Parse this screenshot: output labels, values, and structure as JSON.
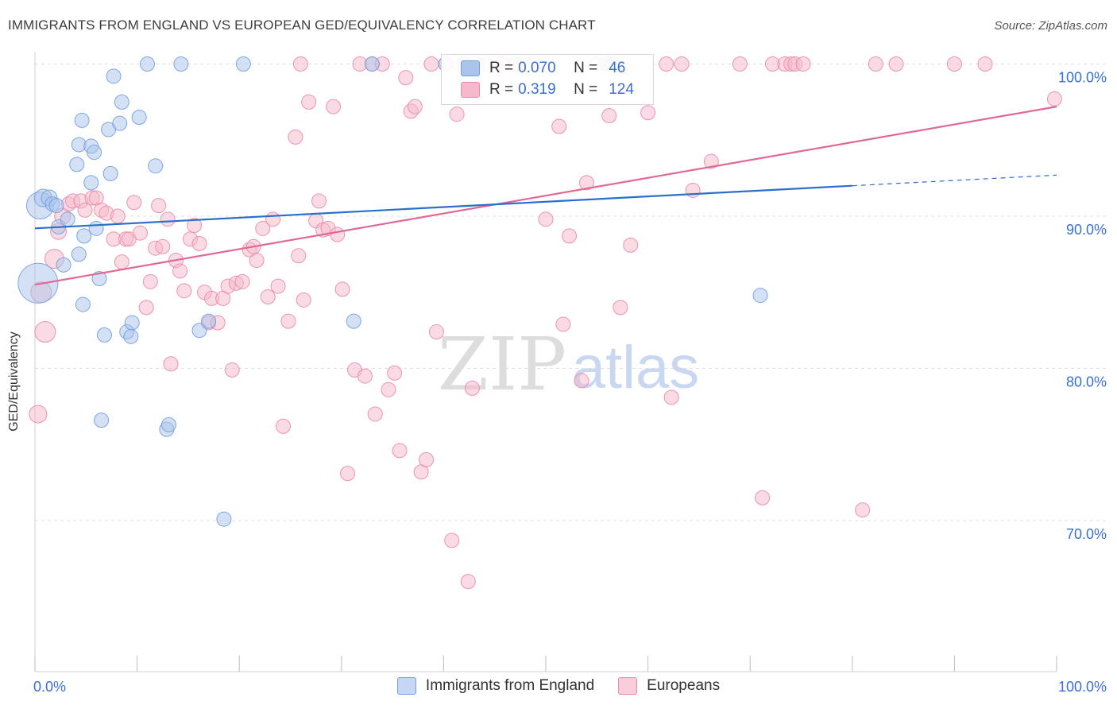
{
  "header": {
    "title": "IMMIGRANTS FROM ENGLAND VS EUROPEAN GED/EQUIVALENCY CORRELATION CHART",
    "source": "Source: ZipAtlas.com"
  },
  "watermark": {
    "zip": "ZIP",
    "atlas": "atlas"
  },
  "legend": {
    "rows": [
      {
        "r_label": "R =",
        "r_value": "0.070",
        "n_label": "N =",
        "n_value": "46"
      },
      {
        "r_label": "R =",
        "r_value": "0.319",
        "n_label": "N =",
        "n_value": "124"
      }
    ]
  },
  "colors": {
    "blue_fill": "#aac4ec",
    "blue_stroke": "#6f9fe0",
    "blue_line": "#2b6fcc",
    "pink_fill": "#f6b8ca",
    "pink_stroke": "#e98aa8",
    "pink_line": "#e06a95",
    "tick_label": "#3a6fd0",
    "grid": "#e1e1e1"
  },
  "chart_data": {
    "type": "scatter",
    "title": "IMMIGRANTS FROM ENGLAND VS EUROPEAN GED/EQUIVALENCY CORRELATION CHART",
    "xlabel": "",
    "ylabel": "GED/Equivalency",
    "xlim": [
      0,
      100
    ],
    "ylim": [
      60,
      103
    ],
    "x_tick_labels": [
      "0.0%",
      "100.0%"
    ],
    "y_ticks": [
      70,
      80,
      90,
      100
    ],
    "y_tick_labels": [
      "70.0%",
      "80.0%",
      "90.0%",
      "100.0%"
    ],
    "grid": true,
    "legend_position": "bottom",
    "series": [
      {
        "name": "Immigrants from England",
        "r": 0.07,
        "n": 46,
        "trend": {
          "x0": 0,
          "y0": 89.2,
          "x1": 80,
          "y1": 92.0,
          "dash_to_x": 100,
          "dash_to_y": 92.7
        },
        "points": [
          [
            0.3,
            85.6,
            26
          ],
          [
            0.5,
            90.7,
            18
          ],
          [
            0.8,
            91.2,
            12
          ],
          [
            1.4,
            91.2,
            11
          ],
          [
            1.7,
            90.8,
            10
          ],
          [
            2.1,
            90.7,
            10
          ],
          [
            2.3,
            89.3,
            10
          ],
          [
            3.2,
            89.8,
            10
          ],
          [
            2.8,
            86.8,
            10
          ],
          [
            4.1,
            93.4,
            10
          ],
          [
            4.3,
            94.7,
            10
          ],
          [
            4.6,
            96.3,
            10
          ],
          [
            4.3,
            87.5,
            10
          ],
          [
            4.7,
            84.2,
            10
          ],
          [
            4.8,
            88.7,
            10
          ],
          [
            5.5,
            92.2,
            10
          ],
          [
            5.5,
            94.6,
            10
          ],
          [
            5.8,
            94.2,
            10
          ],
          [
            6.0,
            89.2,
            10
          ],
          [
            6.3,
            85.9,
            10
          ],
          [
            6.5,
            76.6,
            10
          ],
          [
            6.8,
            82.2,
            10
          ],
          [
            7.2,
            95.7,
            10
          ],
          [
            7.4,
            92.8,
            10
          ],
          [
            7.7,
            99.2,
            10
          ],
          [
            8.3,
            96.1,
            10
          ],
          [
            8.5,
            97.5,
            10
          ],
          [
            9.0,
            82.4,
            10
          ],
          [
            9.4,
            82.1,
            10
          ],
          [
            9.5,
            83.0,
            10
          ],
          [
            10.2,
            96.5,
            10
          ],
          [
            11.0,
            100.0,
            10
          ],
          [
            11.8,
            93.3,
            10
          ],
          [
            12.9,
            76.0,
            10
          ],
          [
            13.1,
            76.3,
            10
          ],
          [
            14.3,
            100.0,
            10
          ],
          [
            16.1,
            82.5,
            10
          ],
          [
            17.0,
            83.1,
            10
          ],
          [
            18.5,
            70.1,
            10
          ],
          [
            20.4,
            100.0,
            10
          ],
          [
            31.2,
            83.1,
            10
          ],
          [
            33.0,
            100.0,
            10
          ],
          [
            40.2,
            100.0,
            10
          ],
          [
            56.0,
            100.0,
            10
          ],
          [
            56.5,
            100.0,
            10
          ],
          [
            71.0,
            84.8,
            10
          ]
        ]
      },
      {
        "name": "Europeans",
        "r": 0.319,
        "n": 124,
        "trend": {
          "x0": 0,
          "y0": 85.5,
          "x1": 100,
          "y1": 97.2
        },
        "points": [
          [
            0.3,
            77.0,
            12
          ],
          [
            0.6,
            85.0,
            14
          ],
          [
            1.0,
            82.4,
            14
          ],
          [
            1.9,
            87.2,
            13
          ],
          [
            2.3,
            89.0,
            11
          ],
          [
            2.7,
            90.0,
            11
          ],
          [
            3.3,
            90.8,
            10
          ],
          [
            3.7,
            91.0,
            10
          ],
          [
            4.5,
            91.0,
            10
          ],
          [
            4.9,
            90.4,
            10
          ],
          [
            5.6,
            91.2,
            10
          ],
          [
            6.0,
            91.2,
            10
          ],
          [
            6.5,
            90.4,
            10
          ],
          [
            7.0,
            90.2,
            10
          ],
          [
            7.7,
            88.5,
            10
          ],
          [
            8.1,
            90.0,
            10
          ],
          [
            8.5,
            87.0,
            10
          ],
          [
            8.9,
            88.5,
            10
          ],
          [
            9.2,
            88.5,
            10
          ],
          [
            9.7,
            90.9,
            10
          ],
          [
            10.3,
            88.9,
            10
          ],
          [
            10.9,
            84.0,
            10
          ],
          [
            11.3,
            85.7,
            10
          ],
          [
            11.8,
            87.9,
            10
          ],
          [
            12.1,
            90.7,
            10
          ],
          [
            12.5,
            88.0,
            10
          ],
          [
            13.0,
            89.8,
            10
          ],
          [
            13.3,
            80.3,
            10
          ],
          [
            13.8,
            87.1,
            10
          ],
          [
            14.2,
            86.4,
            10
          ],
          [
            14.6,
            85.1,
            10
          ],
          [
            15.2,
            88.5,
            10
          ],
          [
            15.6,
            89.4,
            10
          ],
          [
            16.1,
            88.2,
            10
          ],
          [
            16.6,
            85.0,
            10
          ],
          [
            17.0,
            83.0,
            10
          ],
          [
            17.3,
            84.6,
            10
          ],
          [
            17.9,
            83.0,
            10
          ],
          [
            18.4,
            84.6,
            10
          ],
          [
            18.9,
            85.4,
            10
          ],
          [
            19.3,
            79.9,
            10
          ],
          [
            19.7,
            85.6,
            10
          ],
          [
            20.3,
            85.7,
            10
          ],
          [
            21.0,
            87.8,
            10
          ],
          [
            21.4,
            88.0,
            10
          ],
          [
            21.7,
            87.1,
            10
          ],
          [
            22.3,
            89.2,
            10
          ],
          [
            22.8,
            84.7,
            10
          ],
          [
            23.3,
            89.8,
            10
          ],
          [
            23.8,
            85.4,
            10
          ],
          [
            24.3,
            76.2,
            10
          ],
          [
            24.8,
            83.1,
            10
          ],
          [
            25.5,
            95.2,
            10
          ],
          [
            25.8,
            87.4,
            10
          ],
          [
            26.3,
            84.5,
            10
          ],
          [
            26.8,
            97.5,
            10
          ],
          [
            27.5,
            89.7,
            10
          ],
          [
            27.8,
            91.0,
            10
          ],
          [
            28.2,
            89.1,
            10
          ],
          [
            28.7,
            89.2,
            10
          ],
          [
            29.2,
            97.2,
            10
          ],
          [
            29.6,
            88.8,
            10
          ],
          [
            30.1,
            85.2,
            10
          ],
          [
            30.6,
            73.1,
            10
          ],
          [
            31.3,
            79.9,
            10
          ],
          [
            31.8,
            100.0,
            10
          ],
          [
            32.3,
            79.5,
            10
          ],
          [
            33.0,
            100.0,
            10
          ],
          [
            33.3,
            77.0,
            10
          ],
          [
            34.0,
            100.0,
            10
          ],
          [
            34.6,
            78.6,
            10
          ],
          [
            35.2,
            79.7,
            10
          ],
          [
            35.7,
            74.6,
            10
          ],
          [
            36.3,
            99.1,
            10
          ],
          [
            36.8,
            96.9,
            10
          ],
          [
            37.2,
            97.2,
            10
          ],
          [
            37.8,
            73.2,
            10
          ],
          [
            38.3,
            74.0,
            10
          ],
          [
            38.8,
            100.0,
            10
          ],
          [
            39.3,
            82.4,
            10
          ],
          [
            40.2,
            100.0,
            10
          ],
          [
            40.8,
            68.7,
            10
          ],
          [
            41.3,
            96.7,
            10
          ],
          [
            42.0,
            100.0,
            10
          ],
          [
            42.4,
            66.0,
            10
          ],
          [
            42.8,
            78.7,
            10
          ],
          [
            43.3,
            100.0,
            10
          ],
          [
            44.3,
            100.0,
            10
          ],
          [
            45.8,
            100.0,
            10
          ],
          [
            47.0,
            100.0,
            10
          ],
          [
            48.2,
            100.0,
            10
          ],
          [
            50.0,
            89.8,
            10
          ],
          [
            51.3,
            95.9,
            10
          ],
          [
            51.7,
            82.9,
            10
          ],
          [
            52.3,
            88.7,
            10
          ],
          [
            53.5,
            79.2,
            10
          ],
          [
            54.0,
            92.2,
            10
          ],
          [
            55.0,
            100.0,
            10
          ],
          [
            56.2,
            96.6,
            10
          ],
          [
            57.3,
            84.0,
            10
          ],
          [
            58.3,
            88.1,
            10
          ],
          [
            60.0,
            96.8,
            10
          ],
          [
            61.8,
            100.0,
            10
          ],
          [
            62.3,
            78.1,
            10
          ],
          [
            63.3,
            100.0,
            10
          ],
          [
            64.4,
            91.7,
            10
          ],
          [
            66.2,
            93.6,
            10
          ],
          [
            69.0,
            100.0,
            10
          ],
          [
            71.2,
            71.5,
            10
          ],
          [
            72.2,
            100.0,
            10
          ],
          [
            73.4,
            100.0,
            10
          ],
          [
            74.0,
            100.0,
            10
          ],
          [
            74.4,
            100.0,
            10
          ],
          [
            75.2,
            100.0,
            10
          ],
          [
            81.0,
            70.7,
            10
          ],
          [
            82.3,
            100.0,
            10
          ],
          [
            84.3,
            100.0,
            10
          ],
          [
            90.0,
            100.0,
            10
          ],
          [
            93.0,
            100.0,
            10
          ],
          [
            99.8,
            97.7,
            10
          ],
          [
            42.0,
            100.0,
            10
          ],
          [
            26.0,
            100.0,
            10
          ]
        ]
      }
    ]
  }
}
